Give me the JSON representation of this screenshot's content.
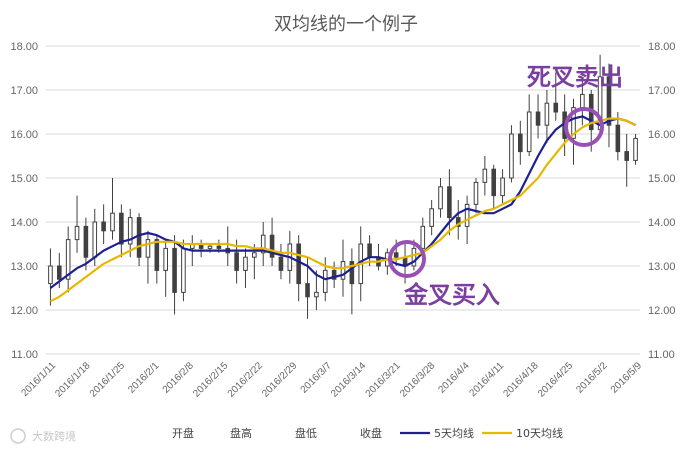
{
  "chart_data": {
    "type": "line",
    "title": "双均线的一个例子",
    "ylim": [
      11,
      18
    ],
    "yticks": [
      "11.00",
      "12.00",
      "13.00",
      "14.00",
      "15.00",
      "16.00",
      "17.00",
      "18.00"
    ],
    "xticks": [
      "2016/1/11",
      "2016/1/18",
      "2016/1/25",
      "2016/2/1",
      "2016/2/8",
      "2016/2/15",
      "2016/2/22",
      "2016/2/29",
      "2016/3/7",
      "2016/3/14",
      "2016/3/21",
      "2016/3/28",
      "2016/4/4",
      "2016/4/11",
      "2016/4/18",
      "2016/4/25",
      "2016/5/2",
      "2016/5/9"
    ],
    "grid": true,
    "legend": {
      "position": "bottom",
      "entries": [
        "开盘",
        "盘高",
        "盘低",
        "收盘",
        "5天均线",
        "10天均线"
      ]
    },
    "series": [
      {
        "name": "5天均线",
        "color": "#1f1f8f",
        "values": [
          12.5,
          12.65,
          12.8,
          12.95,
          13.05,
          13.2,
          13.35,
          13.45,
          13.55,
          13.6,
          13.7,
          13.75,
          13.7,
          13.6,
          13.55,
          13.4,
          13.35,
          13.35,
          13.35,
          13.35,
          13.35,
          13.35,
          13.35,
          13.35,
          13.35,
          13.3,
          13.25,
          13.2,
          13.1,
          13.0,
          12.8,
          12.7,
          12.75,
          12.8,
          12.95,
          13.1,
          13.2,
          13.2,
          13.15,
          13.05,
          13.0,
          13.1,
          13.3,
          13.5,
          13.75,
          14.0,
          14.2,
          14.3,
          14.25,
          14.2,
          14.2,
          14.3,
          14.4,
          14.7,
          15.1,
          15.5,
          15.85,
          16.1,
          16.25,
          16.35,
          16.4,
          16.3,
          16.2,
          16.3,
          16.35,
          16.3,
          16.2
        ]
      },
      {
        "name": "10天均线",
        "color": "#e6b800",
        "values": [
          12.2,
          12.3,
          12.45,
          12.6,
          12.75,
          12.9,
          13.05,
          13.15,
          13.25,
          13.35,
          13.45,
          13.5,
          13.55,
          13.55,
          13.55,
          13.5,
          13.5,
          13.5,
          13.5,
          13.5,
          13.5,
          13.45,
          13.45,
          13.4,
          13.4,
          13.35,
          13.3,
          13.3,
          13.25,
          13.2,
          13.1,
          13.0,
          12.95,
          12.95,
          13.0,
          13.05,
          13.1,
          13.1,
          13.15,
          13.15,
          13.2,
          13.25,
          13.3,
          13.45,
          13.6,
          13.8,
          13.95,
          14.05,
          14.15,
          14.25,
          14.3,
          14.4,
          14.5,
          14.6,
          14.8,
          15.0,
          15.3,
          15.55,
          15.8,
          16.0,
          16.15,
          16.25,
          16.3,
          16.35,
          16.35,
          16.3,
          16.2
        ]
      }
    ],
    "candles": [
      [
        12.6,
        13.4,
        12.1,
        13.0
      ],
      [
        13.0,
        13.3,
        12.5,
        12.7
      ],
      [
        12.7,
        13.9,
        12.4,
        13.6
      ],
      [
        13.6,
        14.6,
        13.3,
        13.9
      ],
      [
        13.9,
        14.1,
        12.9,
        13.2
      ],
      [
        13.2,
        14.3,
        13.0,
        14.0
      ],
      [
        14.0,
        14.4,
        13.5,
        13.8
      ],
      [
        13.8,
        15.0,
        13.6,
        14.2
      ],
      [
        14.2,
        14.4,
        13.2,
        13.5
      ],
      [
        13.5,
        14.3,
        13.2,
        14.1
      ],
      [
        14.1,
        14.2,
        13.0,
        13.2
      ],
      [
        13.2,
        13.8,
        12.6,
        13.6
      ],
      [
        13.6,
        13.7,
        12.6,
        12.9
      ],
      [
        12.9,
        13.6,
        12.3,
        13.4
      ],
      [
        13.4,
        13.7,
        11.9,
        12.4
      ],
      [
        12.4,
        13.6,
        12.2,
        13.4
      ],
      [
        13.4,
        13.7,
        13.0,
        13.5
      ],
      [
        13.5,
        13.6,
        13.2,
        13.4
      ],
      [
        13.4,
        13.5,
        13.3,
        13.45
      ],
      [
        13.45,
        13.6,
        13.3,
        13.4
      ],
      [
        13.4,
        13.9,
        13.0,
        13.3
      ],
      [
        13.3,
        13.6,
        12.6,
        12.9
      ],
      [
        12.9,
        13.4,
        12.5,
        13.2
      ],
      [
        13.2,
        13.5,
        12.7,
        13.3
      ],
      [
        13.3,
        14.0,
        13.0,
        13.7
      ],
      [
        13.7,
        14.1,
        13.0,
        13.2
      ],
      [
        13.2,
        13.5,
        12.7,
        12.9
      ],
      [
        12.9,
        13.8,
        12.6,
        13.5
      ],
      [
        13.5,
        13.7,
        12.2,
        12.6
      ],
      [
        12.6,
        13.2,
        11.8,
        12.3
      ],
      [
        12.3,
        12.9,
        12.0,
        12.4
      ],
      [
        12.4,
        13.2,
        12.2,
        12.9
      ],
      [
        12.9,
        13.1,
        12.5,
        12.7
      ],
      [
        12.7,
        13.6,
        12.3,
        13.1
      ],
      [
        13.1,
        13.4,
        11.9,
        12.6
      ],
      [
        12.6,
        13.9,
        12.2,
        13.5
      ],
      [
        13.5,
        13.7,
        13.0,
        13.2
      ],
      [
        13.2,
        13.5,
        12.9,
        13.0
      ],
      [
        13.0,
        13.4,
        12.8,
        13.3
      ],
      [
        13.3,
        13.6,
        13.0,
        13.2
      ],
      [
        13.2,
        13.5,
        12.6,
        13.0
      ],
      [
        13.0,
        13.6,
        12.9,
        13.4
      ],
      [
        13.4,
        14.1,
        13.2,
        13.9
      ],
      [
        13.9,
        14.5,
        13.7,
        14.3
      ],
      [
        14.3,
        15.0,
        14.1,
        14.8
      ],
      [
        14.8,
        15.2,
        13.7,
        14.1
      ],
      [
        14.1,
        14.5,
        13.6,
        13.9
      ],
      [
        13.9,
        14.6,
        13.5,
        14.4
      ],
      [
        14.4,
        15.0,
        14.2,
        14.9
      ],
      [
        14.9,
        15.5,
        14.6,
        15.2
      ],
      [
        15.2,
        15.3,
        14.3,
        14.6
      ],
      [
        14.6,
        15.2,
        14.4,
        15.0
      ],
      [
        15.0,
        16.2,
        14.9,
        16.0
      ],
      [
        16.0,
        16.3,
        15.3,
        15.6
      ],
      [
        15.6,
        16.9,
        15.5,
        16.5
      ],
      [
        16.5,
        16.9,
        15.9,
        16.2
      ],
      [
        16.2,
        17.0,
        15.8,
        16.7
      ],
      [
        16.7,
        17.4,
        16.3,
        16.5
      ],
      [
        16.5,
        16.9,
        15.5,
        15.9
      ],
      [
        15.9,
        16.8,
        15.3,
        16.6
      ],
      [
        16.6,
        17.3,
        16.2,
        16.9
      ],
      [
        16.9,
        17.0,
        15.6,
        16.1
      ],
      [
        16.1,
        17.8,
        16.0,
        17.3
      ],
      [
        17.3,
        17.6,
        15.7,
        16.2
      ],
      [
        16.2,
        16.5,
        15.4,
        15.6
      ],
      [
        15.6,
        16.0,
        14.8,
        15.4
      ],
      [
        15.4,
        16.0,
        15.3,
        15.9
      ]
    ],
    "annotations": [
      "死叉卖出",
      "金叉买入"
    ]
  },
  "watermark": "大数跨境"
}
